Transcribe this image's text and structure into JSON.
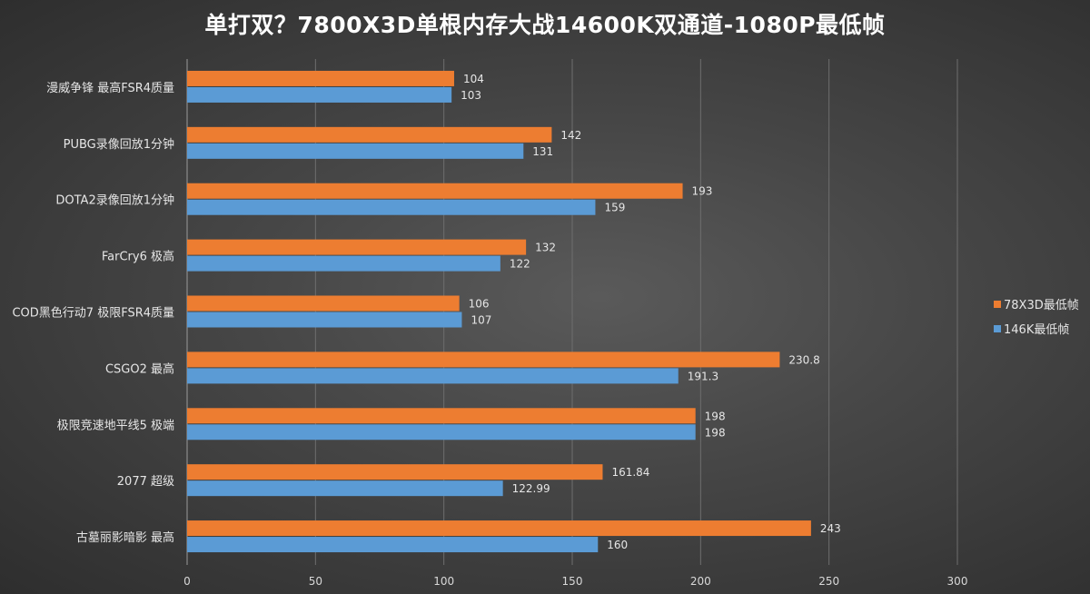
{
  "chart_data": {
    "type": "bar",
    "orientation": "horizontal",
    "title": "单打双？7800X3D单根内存大战14600K双通道-1080P最低帧",
    "categories": [
      "漫威争锋 最高FSR4质量",
      "PUBG录像回放1分钟",
      "DOTA2录像回放1分钟",
      "FarCry6 极高",
      "COD黑色行动7 极限FSR4质量",
      "CSGO2 最高",
      "极限竞速地平线5 极端",
      "2077 超级",
      "古墓丽影暗影 最高"
    ],
    "series": [
      {
        "name": "78X3D最低帧",
        "color": "#ED7D31",
        "values": [
          104,
          142,
          193,
          132,
          106,
          230.8,
          198,
          161.84,
          243
        ],
        "labels": [
          "104",
          "142",
          "193",
          "132",
          "106",
          "230.8",
          "198",
          "161.84",
          "243"
        ]
      },
      {
        "name": "146K最低帧",
        "color": "#5B9BD5",
        "values": [
          103,
          131,
          159,
          122,
          107,
          191.3,
          198,
          122.99,
          160
        ],
        "labels": [
          "103",
          "131",
          "159",
          "122",
          "107",
          "191.3",
          "198",
          "122.99",
          "160"
        ]
      }
    ],
    "xlim": [
      0,
      300
    ],
    "xticks": [
      0,
      50,
      100,
      150,
      200,
      250,
      300
    ],
    "xtick_labels": [
      "0",
      "50",
      "100",
      "150",
      "200",
      "250",
      "300"
    ],
    "grid": true,
    "legend": "right"
  }
}
